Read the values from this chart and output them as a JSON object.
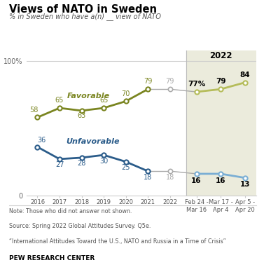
{
  "title": "Views of NATO in Sweden",
  "subtitle": "% in Sweden who have a(n) __ view of NATO",
  "favorable_values": [
    58,
    65,
    63,
    65,
    70,
    79
  ],
  "favorable_2022_values": [
    77,
    79,
    84
  ],
  "unfavorable_values": [
    36,
    27,
    28,
    30,
    25,
    18
  ],
  "unfavorable_2022_values": [
    16,
    16,
    13
  ],
  "favorable_color": "#7a8520",
  "unfavorable_color": "#2b5c8a",
  "unfavorable_2022_color": "#7aaed4",
  "favorable_2022_color": "#b5bc5a",
  "connector_color": "#aaaaaa",
  "highlight_bg": "#ebebdc",
  "year_labels": [
    "2016",
    "2017",
    "2018",
    "2019",
    "2020",
    "2021",
    "2022"
  ],
  "x2022_labels": [
    "Feb 24 -\nMar 16",
    "Mar 17 -\nApr 4",
    "Apr 5 -\nApr 20"
  ],
  "ylim": [
    0,
    108
  ],
  "note_lines": [
    "Note: Those who did not answer not shown.",
    "Source: Spring 2022 Global Attitudes Survey. Q5e.",
    "“International Attitudes Toward the U.S., NATO and Russia in a Time of Crisis”"
  ],
  "source_label": "PEW RESEARCH CENTER"
}
